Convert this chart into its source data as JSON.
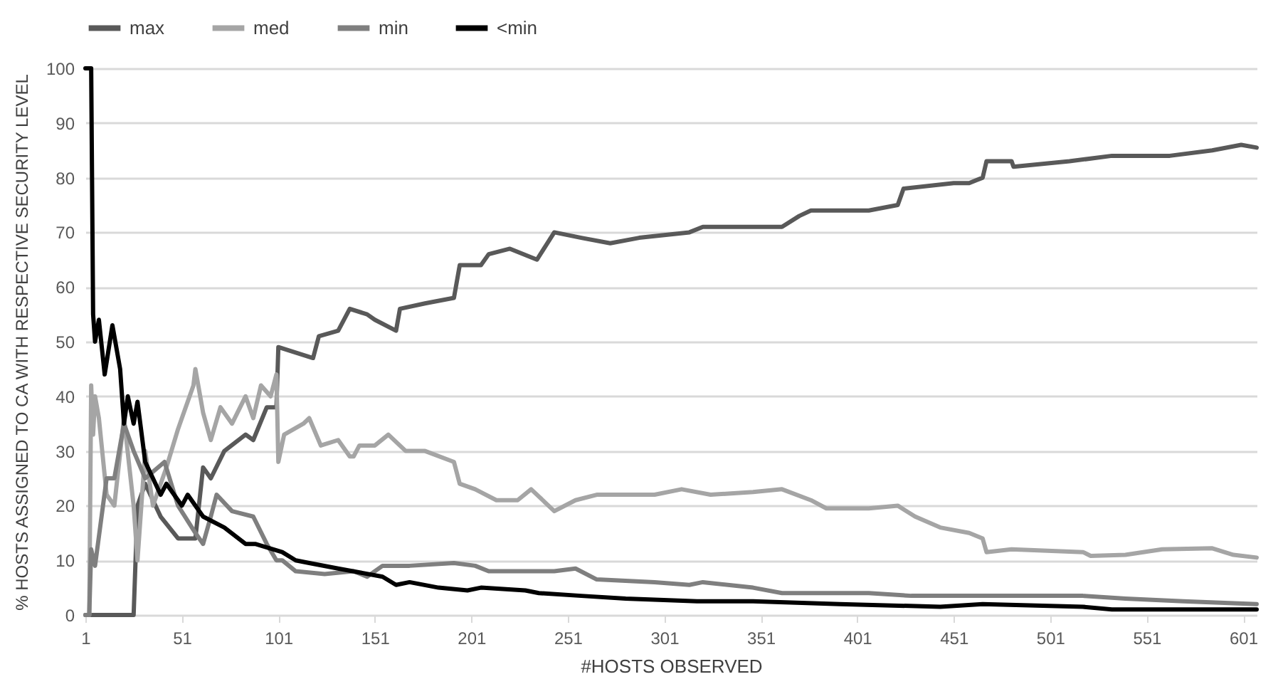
{
  "chart_data": {
    "type": "line",
    "xlabel": "#HOSTS OBSERVED",
    "ylabel": "% HOSTS ASSIGNED TO CA WITH RESPECTIVE SECURITY LEVEL",
    "xlim": [
      1,
      608
    ],
    "xticks": [
      1,
      51,
      101,
      151,
      201,
      251,
      301,
      351,
      401,
      451,
      501,
      551,
      601
    ],
    "ylim": [
      0,
      100
    ],
    "yticks": [
      0,
      10,
      20,
      30,
      40,
      50,
      60,
      70,
      80,
      90,
      100
    ],
    "grid": "y",
    "legend": "top",
    "series": [
      {
        "name": "max",
        "color": "#595959",
        "x": [
          1,
          26,
          27,
          28,
          32,
          40,
          49,
          58,
          62,
          66,
          73,
          84,
          88,
          95,
          100,
          101,
          110,
          119,
          122,
          132,
          138,
          147,
          151,
          162,
          164,
          177,
          192,
          195,
          206,
          210,
          221,
          235,
          244,
          258,
          273,
          288,
          314,
          321,
          333,
          362,
          371,
          377,
          407,
          422,
          425,
          451,
          459,
          466,
          468,
          481,
          482,
          511,
          533,
          563,
          585,
          600,
          608
        ],
        "values": [
          0,
          0,
          10,
          20,
          24,
          18,
          14,
          14,
          27,
          25,
          30,
          33,
          32,
          38,
          38,
          49,
          48,
          47,
          51,
          52,
          56,
          55,
          54,
          52,
          56,
          57,
          58,
          64,
          64,
          66,
          67,
          65,
          70,
          69,
          68,
          69,
          70,
          71,
          71,
          71,
          73,
          74,
          74,
          75,
          78,
          79,
          79,
          80,
          83,
          83,
          82,
          83,
          84,
          84,
          85,
          86,
          85.5
        ]
      },
      {
        "name": "med",
        "color": "#a5a5a5",
        "x": [
          1,
          3,
          4,
          5,
          6,
          8,
          12,
          16,
          21,
          26,
          28,
          32,
          36,
          43,
          49,
          57,
          58,
          62,
          66,
          71,
          77,
          84,
          88,
          92,
          97,
          100,
          101,
          104,
          114,
          117,
          123,
          132,
          138,
          140,
          143,
          151,
          158,
          167,
          177,
          192,
          195,
          203,
          214,
          225,
          232,
          244,
          255,
          266,
          296,
          310,
          325,
          347,
          362,
          377,
          385,
          407,
          422,
          431,
          444,
          459,
          466,
          468,
          481,
          518,
          522,
          540,
          559,
          585,
          596,
          608
        ],
        "values": [
          0,
          0,
          42,
          33,
          40,
          36,
          22,
          20,
          36,
          20,
          10,
          30,
          20,
          27,
          34,
          42,
          45,
          37,
          32,
          38,
          35,
          40,
          36,
          42,
          40,
          44,
          28,
          33,
          35,
          36,
          31,
          32,
          29,
          29,
          31,
          31,
          33,
          30,
          30,
          28,
          24,
          23,
          21,
          21,
          23,
          19,
          21,
          22,
          22,
          23,
          22,
          22.5,
          23,
          21,
          19.5,
          19.5,
          20,
          18,
          16,
          15,
          14,
          11.5,
          12,
          11.5,
          10.8,
          11,
          12,
          12.2,
          11,
          10.5
        ]
      },
      {
        "name": "min",
        "color": "#7f7f7f",
        "x": [
          1,
          3,
          4,
          6,
          12,
          16,
          21,
          26,
          32,
          42,
          49,
          58,
          62,
          66,
          69,
          77,
          88,
          95,
          100,
          103,
          110,
          125,
          140,
          147,
          155,
          169,
          192,
          203,
          210,
          244,
          255,
          266,
          296,
          314,
          321,
          347,
          362,
          407,
          429,
          481,
          518,
          540,
          570,
          608
        ],
        "values": [
          0,
          0,
          12,
          9,
          25,
          25,
          35,
          30,
          25,
          28,
          20,
          15,
          13,
          18,
          22,
          19,
          18,
          13,
          10,
          10,
          8,
          7.5,
          8,
          7,
          9,
          9,
          9.5,
          9,
          8,
          8,
          8.5,
          6.5,
          6,
          5.5,
          6,
          5,
          4,
          4,
          3.5,
          3.5,
          3.5,
          3,
          2.5,
          2
        ]
      },
      {
        "name": "<min",
        "color": "#000000",
        "x": [
          1,
          4,
          5,
          6,
          8,
          11,
          15,
          19,
          21,
          23,
          26,
          28,
          32,
          40,
          43,
          51,
          54,
          62,
          73,
          84,
          89,
          103,
          110,
          117,
          132,
          155,
          162,
          169,
          184,
          199,
          206,
          229,
          236,
          258,
          281,
          318,
          347,
          392,
          444,
          466,
          518,
          533,
          608
        ],
        "values": [
          100,
          100,
          55,
          50,
          54,
          44,
          53,
          45,
          35,
          40,
          35,
          39,
          28,
          22,
          24,
          20,
          22,
          18,
          16,
          13,
          13,
          11.5,
          10,
          9.5,
          8.5,
          7,
          5.5,
          6,
          5,
          4.5,
          5,
          4.5,
          4,
          3.5,
          3,
          2.5,
          2.5,
          2,
          1.5,
          2,
          1.5,
          1,
          1
        ]
      }
    ]
  }
}
